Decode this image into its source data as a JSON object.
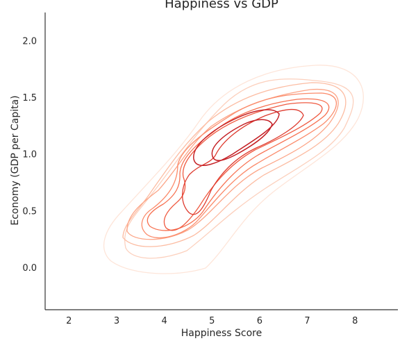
{
  "chart_data": {
    "type": "contour",
    "title": "Happiness vs GDP",
    "xlabel": "Happiness Score",
    "ylabel": "Economy (GDP per Capita)",
    "xlim": [
      1.5,
      8.9
    ],
    "ylim": [
      -0.37,
      2.25
    ],
    "x_ticks": [
      "2",
      "3",
      "4",
      "5",
      "6",
      "7",
      "8"
    ],
    "y_ticks": [
      "0.0",
      "0.5",
      "1.0",
      "1.5",
      "2.0"
    ],
    "grid": false,
    "colormap": "Reds",
    "contour_levels": [
      {
        "level": 1,
        "color": "#fee5d9"
      },
      {
        "level": 2,
        "color": "#fcd0bd"
      },
      {
        "level": 3,
        "color": "#fcbca2"
      },
      {
        "level": 4,
        "color": "#fca486"
      },
      {
        "level": 5,
        "color": "#fb8b6b"
      },
      {
        "level": 6,
        "color": "#f77151"
      },
      {
        "level": 7,
        "color": "#ef5a41"
      },
      {
        "level": 8,
        "color": "#de3a2e"
      },
      {
        "level": 9,
        "color": "#c41f24"
      }
    ]
  }
}
